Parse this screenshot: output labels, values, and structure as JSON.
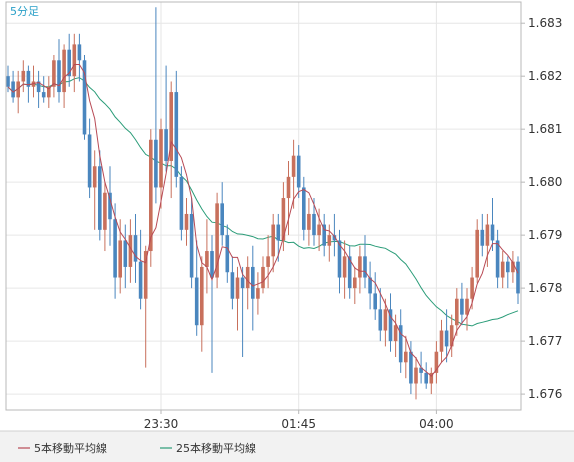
{
  "timeframe_label": "5分足",
  "colors": {
    "up": "#c8705c",
    "down": "#4a86be",
    "ma5": "#b84a55",
    "ma25": "#2a9c78",
    "grid": "#e6e6e6",
    "frame": "#b8b8b8",
    "legend_bg": "#f2f2f2"
  },
  "chart_data": {
    "type": "candlestick",
    "grid": true,
    "ylim": [
      1.6757,
      1.6834
    ],
    "y_ticks": [
      "1.683",
      "1.682",
      "1.681",
      "1.680",
      "1.679",
      "1.678",
      "1.677",
      "1.676"
    ],
    "x_ticks": [
      {
        "index": 30,
        "label": "23:30"
      },
      {
        "index": 57,
        "label": "01:45"
      },
      {
        "index": 84,
        "label": "04:00"
      }
    ],
    "legend": [
      {
        "label": "5本移動平均線",
        "color": "#b84a55"
      },
      {
        "label": "25本移動平均線",
        "color": "#2a9c78"
      }
    ],
    "candles": [
      [
        1.682,
        1.6822,
        1.6817,
        1.6818
      ],
      [
        1.6819,
        1.6821,
        1.6815,
        1.6816
      ],
      [
        1.6816,
        1.6821,
        1.6813,
        1.6819
      ],
      [
        1.6819,
        1.6823,
        1.6817,
        1.6821
      ],
      [
        1.6821,
        1.6822,
        1.6815,
        1.6818
      ],
      [
        1.6818,
        1.6822,
        1.6816,
        1.6819
      ],
      [
        1.6819,
        1.6821,
        1.6814,
        1.6817
      ],
      [
        1.6817,
        1.682,
        1.6815,
        1.6816
      ],
      [
        1.6816,
        1.682,
        1.6814,
        1.6818
      ],
      [
        1.6818,
        1.6824,
        1.6816,
        1.6823
      ],
      [
        1.6823,
        1.6827,
        1.6815,
        1.6817
      ],
      [
        1.6817,
        1.6826,
        1.6814,
        1.6825
      ],
      [
        1.6825,
        1.6828,
        1.6818,
        1.682
      ],
      [
        1.682,
        1.6828,
        1.6817,
        1.6826
      ],
      [
        1.6826,
        1.6828,
        1.6819,
        1.6823
      ],
      [
        1.6823,
        1.6824,
        1.6808,
        1.6809
      ],
      [
        1.6809,
        1.6812,
        1.6797,
        1.6799
      ],
      [
        1.6799,
        1.6806,
        1.6791,
        1.6803
      ],
      [
        1.6803,
        1.6806,
        1.6789,
        1.6791
      ],
      [
        1.6791,
        1.68,
        1.6787,
        1.6798
      ],
      [
        1.6798,
        1.6803,
        1.6788,
        1.6793
      ],
      [
        1.6793,
        1.6796,
        1.6778,
        1.6782
      ],
      [
        1.6782,
        1.6793,
        1.6779,
        1.6789
      ],
      [
        1.6789,
        1.6792,
        1.678,
        1.6784
      ],
      [
        1.6784,
        1.6793,
        1.6781,
        1.679
      ],
      [
        1.679,
        1.6794,
        1.6781,
        1.6785
      ],
      [
        1.6785,
        1.6791,
        1.6776,
        1.6778
      ],
      [
        1.6778,
        1.6788,
        1.6765,
        1.6787
      ],
      [
        1.6787,
        1.681,
        1.6784,
        1.6808
      ],
      [
        1.6808,
        1.6833,
        1.6796,
        1.6799
      ],
      [
        1.6799,
        1.6812,
        1.6795,
        1.681
      ],
      [
        1.681,
        1.6822,
        1.6802,
        1.6804
      ],
      [
        1.6804,
        1.6819,
        1.6797,
        1.6817
      ],
      [
        1.6817,
        1.6821,
        1.6799,
        1.6801
      ],
      [
        1.6801,
        1.6803,
        1.6789,
        1.6791
      ],
      [
        1.6791,
        1.6797,
        1.6788,
        1.6794
      ],
      [
        1.6794,
        1.6797,
        1.678,
        1.6782
      ],
      [
        1.6782,
        1.6789,
        1.6771,
        1.6773
      ],
      [
        1.6773,
        1.6786,
        1.6768,
        1.6784
      ],
      [
        1.6784,
        1.6793,
        1.6779,
        1.6787
      ],
      [
        1.6787,
        1.679,
        1.6764,
        1.6782
      ],
      [
        1.6782,
        1.6798,
        1.678,
        1.6796
      ],
      [
        1.6796,
        1.68,
        1.6788,
        1.679
      ],
      [
        1.679,
        1.6792,
        1.6781,
        1.6783
      ],
      [
        1.6783,
        1.6786,
        1.6776,
        1.6778
      ],
      [
        1.6778,
        1.6784,
        1.6772,
        1.6782
      ],
      [
        1.6782,
        1.6784,
        1.6767,
        1.678
      ],
      [
        1.678,
        1.6786,
        1.6776,
        1.6784
      ],
      [
        1.6784,
        1.6788,
        1.6772,
        1.6778
      ],
      [
        1.6778,
        1.6783,
        1.6775,
        1.678
      ],
      [
        1.678,
        1.6786,
        1.6779,
        1.6784
      ],
      [
        1.6784,
        1.679,
        1.678,
        1.6786
      ],
      [
        1.6786,
        1.6794,
        1.6783,
        1.6792
      ],
      [
        1.6792,
        1.6794,
        1.6785,
        1.6789
      ],
      [
        1.6789,
        1.68,
        1.6787,
        1.6797
      ],
      [
        1.6797,
        1.6804,
        1.679,
        1.6801
      ],
      [
        1.6801,
        1.6808,
        1.6795,
        1.6805
      ],
      [
        1.6805,
        1.6807,
        1.6797,
        1.6799
      ],
      [
        1.6799,
        1.6801,
        1.6789,
        1.6791
      ],
      [
        1.6791,
        1.6797,
        1.6788,
        1.6794
      ],
      [
        1.6794,
        1.6797,
        1.6788,
        1.679
      ],
      [
        1.679,
        1.6795,
        1.6787,
        1.6792
      ],
      [
        1.6792,
        1.6794,
        1.6786,
        1.6788
      ],
      [
        1.6788,
        1.6792,
        1.6785,
        1.679
      ],
      [
        1.679,
        1.6794,
        1.6786,
        1.6789
      ],
      [
        1.6789,
        1.6791,
        1.6779,
        1.6782
      ],
      [
        1.6782,
        1.6789,
        1.6778,
        1.6786
      ],
      [
        1.6786,
        1.6788,
        1.6778,
        1.678
      ],
      [
        1.678,
        1.6784,
        1.6777,
        1.6782
      ],
      [
        1.6782,
        1.6788,
        1.6779,
        1.6786
      ],
      [
        1.6786,
        1.679,
        1.678,
        1.6782
      ],
      [
        1.6782,
        1.6785,
        1.6776,
        1.6779
      ],
      [
        1.6779,
        1.6783,
        1.6774,
        1.6776
      ],
      [
        1.6776,
        1.678,
        1.677,
        1.6772
      ],
      [
        1.6772,
        1.6778,
        1.6769,
        1.6776
      ],
      [
        1.6776,
        1.6779,
        1.6768,
        1.677
      ],
      [
        1.677,
        1.6775,
        1.6767,
        1.6773
      ],
      [
        1.6773,
        1.6776,
        1.6764,
        1.6766
      ],
      [
        1.6766,
        1.6771,
        1.6763,
        1.6768
      ],
      [
        1.6768,
        1.677,
        1.676,
        1.6762
      ],
      [
        1.6762,
        1.6767,
        1.6759,
        1.6765
      ],
      [
        1.6765,
        1.6768,
        1.6762,
        1.6764
      ],
      [
        1.6764,
        1.6766,
        1.6761,
        1.6762
      ],
      [
        1.6762,
        1.6765,
        1.676,
        1.6764
      ],
      [
        1.6764,
        1.677,
        1.6762,
        1.6768
      ],
      [
        1.6768,
        1.6774,
        1.6766,
        1.6772
      ],
      [
        1.6772,
        1.6776,
        1.6766,
        1.6769
      ],
      [
        1.6769,
        1.6775,
        1.6767,
        1.6773
      ],
      [
        1.6773,
        1.678,
        1.6771,
        1.6778
      ],
      [
        1.6778,
        1.6781,
        1.6773,
        1.6775
      ],
      [
        1.6775,
        1.678,
        1.6772,
        1.6778
      ],
      [
        1.6778,
        1.6784,
        1.6776,
        1.6782
      ],
      [
        1.6782,
        1.6793,
        1.6781,
        1.6791
      ],
      [
        1.6791,
        1.6794,
        1.6786,
        1.6788
      ],
      [
        1.6788,
        1.6794,
        1.6784,
        1.6792
      ],
      [
        1.6792,
        1.6797,
        1.6787,
        1.6789
      ],
      [
        1.6789,
        1.6791,
        1.678,
        1.6782
      ],
      [
        1.6782,
        1.6787,
        1.678,
        1.6785
      ],
      [
        1.6785,
        1.6786,
        1.678,
        1.6783
      ],
      [
        1.6783,
        1.6787,
        1.6781,
        1.6785
      ],
      [
        1.6785,
        1.6786,
        1.6777,
        1.6779
      ]
    ]
  }
}
